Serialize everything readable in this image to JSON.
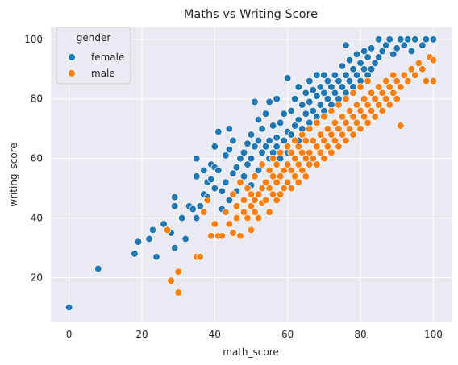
{
  "chart_data": {
    "type": "scatter",
    "title": "Maths vs Writing Score",
    "xlabel": "math_score",
    "ylabel": "writing_score",
    "xlim": [
      -5,
      105
    ],
    "ylim": [
      5,
      104
    ],
    "xticks": [
      0,
      20,
      40,
      60,
      80,
      100
    ],
    "yticks": [
      20,
      40,
      60,
      80,
      100
    ],
    "grid": true,
    "legend": {
      "title": "gender",
      "placement": "top-left"
    },
    "series": [
      {
        "name": "female",
        "color": "#1f77b4",
        "points": [
          [
            0,
            10
          ],
          [
            8,
            23
          ],
          [
            18,
            28
          ],
          [
            19,
            32
          ],
          [
            22,
            33
          ],
          [
            23,
            36
          ],
          [
            24,
            27
          ],
          [
            26,
            38
          ],
          [
            28,
            35
          ],
          [
            29,
            30
          ],
          [
            29,
            44
          ],
          [
            29,
            47
          ],
          [
            31,
            40
          ],
          [
            32,
            33
          ],
          [
            33,
            44
          ],
          [
            34,
            43
          ],
          [
            35,
            40
          ],
          [
            35,
            54
          ],
          [
            35,
            60
          ],
          [
            36,
            44
          ],
          [
            37,
            48
          ],
          [
            37,
            56
          ],
          [
            38,
            47
          ],
          [
            38,
            52
          ],
          [
            39,
            53
          ],
          [
            39,
            58
          ],
          [
            40,
            50
          ],
          [
            40,
            57
          ],
          [
            40,
            64
          ],
          [
            41,
            56
          ],
          [
            41,
            69
          ],
          [
            42,
            43
          ],
          [
            42,
            49
          ],
          [
            43,
            52
          ],
          [
            43,
            61
          ],
          [
            44,
            46
          ],
          [
            44,
            63
          ],
          [
            44,
            70
          ],
          [
            45,
            55
          ],
          [
            45,
            66
          ],
          [
            46,
            57
          ],
          [
            46,
            49
          ],
          [
            47,
            60
          ],
          [
            48,
            62
          ],
          [
            48,
            54
          ],
          [
            49,
            58
          ],
          [
            49,
            65
          ],
          [
            50,
            51
          ],
          [
            50,
            60
          ],
          [
            50,
            68
          ],
          [
            51,
            64
          ],
          [
            51,
            79
          ],
          [
            52,
            56
          ],
          [
            52,
            66
          ],
          [
            52,
            73
          ],
          [
            53,
            62
          ],
          [
            53,
            58
          ],
          [
            53,
            70
          ],
          [
            54,
            64
          ],
          [
            54,
            75
          ],
          [
            55,
            66
          ],
          [
            55,
            60
          ],
          [
            55,
            79
          ],
          [
            56,
            62
          ],
          [
            56,
            71
          ],
          [
            57,
            67
          ],
          [
            57,
            64
          ],
          [
            57,
            80
          ],
          [
            58,
            60
          ],
          [
            58,
            72
          ],
          [
            59,
            66
          ],
          [
            59,
            75
          ],
          [
            60,
            69
          ],
          [
            60,
            62
          ],
          [
            60,
            87
          ],
          [
            61,
            68
          ],
          [
            61,
            76
          ],
          [
            62,
            71
          ],
          [
            62,
            80
          ],
          [
            63,
            73
          ],
          [
            63,
            66
          ],
          [
            63,
            84
          ],
          [
            64,
            70
          ],
          [
            64,
            78
          ],
          [
            65,
            75
          ],
          [
            65,
            82
          ],
          [
            66,
            72
          ],
          [
            66,
            79
          ],
          [
            66,
            86
          ],
          [
            67,
            76
          ],
          [
            67,
            83
          ],
          [
            68,
            74
          ],
          [
            68,
            81
          ],
          [
            68,
            88
          ],
          [
            69,
            78
          ],
          [
            69,
            84
          ],
          [
            70,
            76
          ],
          [
            70,
            82
          ],
          [
            70,
            88
          ],
          [
            71,
            80
          ],
          [
            71,
            86
          ],
          [
            72,
            78
          ],
          [
            72,
            84
          ],
          [
            73,
            82
          ],
          [
            73,
            88
          ],
          [
            74,
            80
          ],
          [
            74,
            86
          ],
          [
            75,
            84
          ],
          [
            75,
            91
          ],
          [
            76,
            82
          ],
          [
            76,
            88
          ],
          [
            76,
            98
          ],
          [
            77,
            86
          ],
          [
            77,
            93
          ],
          [
            78,
            84
          ],
          [
            78,
            90
          ],
          [
            79,
            88
          ],
          [
            79,
            95
          ],
          [
            80,
            86
          ],
          [
            80,
            92
          ],
          [
            81,
            90
          ],
          [
            81,
            96
          ],
          [
            82,
            88
          ],
          [
            82,
            94
          ],
          [
            83,
            90
          ],
          [
            83,
            97
          ],
          [
            84,
            92
          ],
          [
            85,
            94
          ],
          [
            85,
            100
          ],
          [
            86,
            96
          ],
          [
            87,
            98
          ],
          [
            88,
            100
          ],
          [
            89,
            95
          ],
          [
            90,
            97
          ],
          [
            91,
            100
          ],
          [
            92,
            98
          ],
          [
            93,
            100
          ],
          [
            94,
            96
          ],
          [
            95,
            100
          ],
          [
            97,
            98
          ],
          [
            98,
            100
          ],
          [
            100,
            100
          ]
        ]
      },
      {
        "name": "male",
        "color": "#ff7f0e",
        "points": [
          [
            27,
            36
          ],
          [
            28,
            19
          ],
          [
            30,
            15
          ],
          [
            30,
            22
          ],
          [
            35,
            27
          ],
          [
            36,
            27
          ],
          [
            37,
            42
          ],
          [
            38,
            46
          ],
          [
            39,
            34
          ],
          [
            40,
            38
          ],
          [
            41,
            34
          ],
          [
            42,
            34
          ],
          [
            43,
            42
          ],
          [
            44,
            38
          ],
          [
            45,
            35
          ],
          [
            45,
            48
          ],
          [
            46,
            40
          ],
          [
            46,
            44
          ],
          [
            47,
            34
          ],
          [
            47,
            52
          ],
          [
            48,
            42
          ],
          [
            48,
            46
          ],
          [
            49,
            40
          ],
          [
            49,
            50
          ],
          [
            50,
            44
          ],
          [
            50,
            48
          ],
          [
            50,
            36
          ],
          [
            51,
            46
          ],
          [
            51,
            42
          ],
          [
            51,
            54
          ],
          [
            52,
            48
          ],
          [
            52,
            40
          ],
          [
            53,
            50
          ],
          [
            53,
            45
          ],
          [
            53,
            58
          ],
          [
            54,
            46
          ],
          [
            54,
            52
          ],
          [
            55,
            50
          ],
          [
            55,
            42
          ],
          [
            55,
            56
          ],
          [
            56,
            48
          ],
          [
            56,
            54
          ],
          [
            56,
            60
          ],
          [
            57,
            52
          ],
          [
            57,
            46
          ],
          [
            57,
            58
          ],
          [
            58,
            54
          ],
          [
            58,
            48
          ],
          [
            58,
            62
          ],
          [
            59,
            50
          ],
          [
            59,
            56
          ],
          [
            60,
            58
          ],
          [
            60,
            52
          ],
          [
            60,
            64
          ],
          [
            61,
            56
          ],
          [
            61,
            50
          ],
          [
            61,
            62
          ],
          [
            62,
            54
          ],
          [
            62,
            60
          ],
          [
            62,
            66
          ],
          [
            63,
            58
          ],
          [
            63,
            52
          ],
          [
            63,
            64
          ],
          [
            64,
            56
          ],
          [
            64,
            62
          ],
          [
            64,
            68
          ],
          [
            65,
            60
          ],
          [
            65,
            54
          ],
          [
            65,
            66
          ],
          [
            66,
            62
          ],
          [
            66,
            58
          ],
          [
            66,
            70
          ],
          [
            67,
            60
          ],
          [
            67,
            66
          ],
          [
            68,
            64
          ],
          [
            68,
            58
          ],
          [
            68,
            72
          ],
          [
            69,
            62
          ],
          [
            69,
            68
          ],
          [
            70,
            66
          ],
          [
            70,
            60
          ],
          [
            70,
            74
          ],
          [
            71,
            64
          ],
          [
            71,
            70
          ],
          [
            72,
            68
          ],
          [
            72,
            62
          ],
          [
            72,
            76
          ],
          [
            73,
            66
          ],
          [
            73,
            72
          ],
          [
            74,
            70
          ],
          [
            74,
            64
          ],
          [
            74,
            78
          ],
          [
            75,
            68
          ],
          [
            75,
            74
          ],
          [
            76,
            72
          ],
          [
            76,
            66
          ],
          [
            76,
            80
          ],
          [
            77,
            70
          ],
          [
            77,
            76
          ],
          [
            78,
            74
          ],
          [
            78,
            68
          ],
          [
            78,
            82
          ],
          [
            79,
            72
          ],
          [
            79,
            78
          ],
          [
            80,
            76
          ],
          [
            80,
            70
          ],
          [
            80,
            84
          ],
          [
            81,
            74
          ],
          [
            81,
            80
          ],
          [
            82,
            78
          ],
          [
            82,
            72
          ],
          [
            82,
            86
          ],
          [
            83,
            76
          ],
          [
            83,
            82
          ],
          [
            84,
            80
          ],
          [
            84,
            74
          ],
          [
            85,
            78
          ],
          [
            85,
            84
          ],
          [
            86,
            82
          ],
          [
            86,
            76
          ],
          [
            87,
            80
          ],
          [
            87,
            86
          ],
          [
            88,
            84
          ],
          [
            88,
            78
          ],
          [
            89,
            82
          ],
          [
            89,
            88
          ],
          [
            90,
            86
          ],
          [
            90,
            80
          ],
          [
            91,
            84
          ],
          [
            91,
            71
          ],
          [
            92,
            88
          ],
          [
            93,
            86
          ],
          [
            94,
            90
          ],
          [
            95,
            88
          ],
          [
            96,
            92
          ],
          [
            97,
            90
          ],
          [
            98,
            86
          ],
          [
            99,
            94
          ],
          [
            100,
            93
          ],
          [
            100,
            86
          ]
        ]
      }
    ]
  }
}
